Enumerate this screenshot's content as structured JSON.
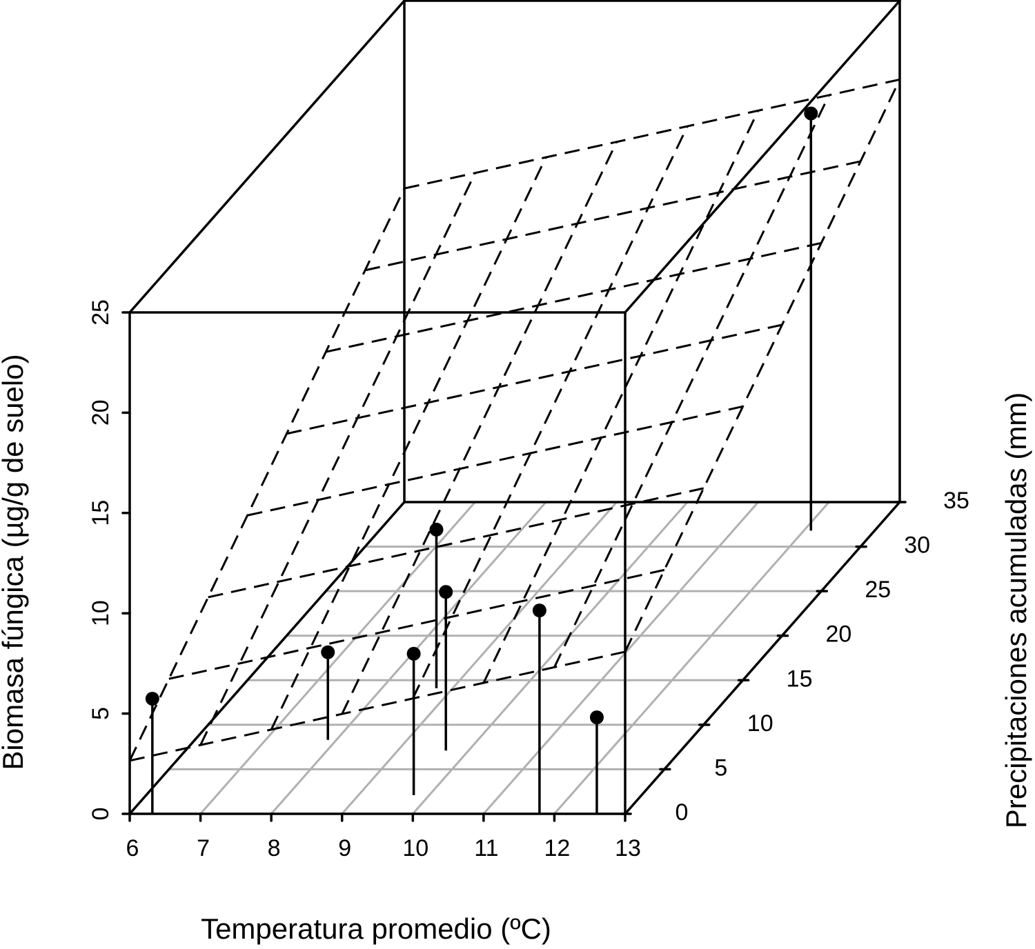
{
  "chart_data": {
    "type": "scatter3d",
    "xlabel": "Temperatura promedio (ºC)",
    "ylabel": "Precipitaciones acumuladas (mm)",
    "zlabel": "Biomasa fúngica (µg/g de suelo)",
    "xlim": [
      6,
      13
    ],
    "ylim": [
      0,
      35
    ],
    "zlim": [
      0,
      25
    ],
    "xticks": [
      6,
      7,
      8,
      9,
      10,
      11,
      12,
      13
    ],
    "yticks": [
      0,
      5,
      10,
      15,
      20,
      25,
      30,
      35
    ],
    "zticks": [
      0,
      5,
      10,
      15,
      20,
      25
    ],
    "color": "#000000",
    "points": {
      "x": [
        6.32,
        7.88,
        9.78,
        8.77,
        9.68,
        11.79,
        12.6,
        12.1
      ],
      "y": [
        0,
        8.3,
        2.1,
        14.1,
        7.1,
        0,
        0,
        31.8
      ],
      "z": [
        5.74,
        4.37,
        7.05,
        7.91,
        7.91,
        10.14,
        4.81,
        20.8
      ]
    },
    "surface": {
      "x": [
        6,
        7,
        8,
        9,
        10,
        11,
        12,
        13
      ],
      "y": [
        0,
        5,
        10,
        15,
        20,
        25,
        30,
        35
      ],
      "z": [
        [
          2.65,
          3.43,
          4.2,
          4.98,
          5.75,
          6.53,
          7.31,
          8.08
        ],
        [
          4.51,
          5.28,
          6.06,
          6.83,
          7.61,
          8.39,
          9.16,
          9.94
        ],
        [
          6.36,
          7.14,
          7.91,
          8.69,
          9.46,
          10.24,
          11.02,
          11.79
        ],
        [
          8.22,
          8.99,
          9.77,
          10.54,
          11.32,
          12.1,
          12.87,
          13.65
        ],
        [
          10.07,
          10.85,
          11.62,
          12.4,
          13.18,
          13.95,
          14.73,
          15.5
        ],
        [
          11.93,
          12.7,
          13.48,
          14.25,
          15.03,
          15.81,
          16.58,
          17.36
        ],
        [
          13.78,
          14.56,
          15.33,
          16.11,
          16.89,
          17.66,
          18.44,
          19.21
        ],
        [
          15.64,
          16.41,
          17.19,
          17.96,
          18.74,
          19.52,
          20.29,
          21.07
        ]
      ]
    }
  }
}
